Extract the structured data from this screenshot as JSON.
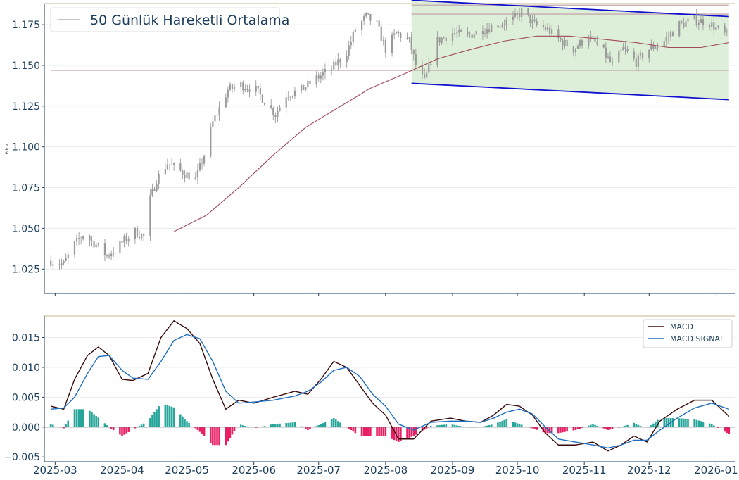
{
  "chart_data": [
    {
      "type": "candlestick",
      "ylabel": "Price",
      "ylim": [
        1.01,
        1.188
      ],
      "yticks": [
        1.025,
        1.05,
        1.075,
        1.1,
        1.125,
        1.15,
        1.175
      ],
      "ytick_labels": [
        "1.025",
        "1.050",
        "1.075",
        "1.100",
        "1.125",
        "1.150",
        "1.175"
      ],
      "x_start": "2025-02-24",
      "x_end": "2026-01-10",
      "xticks": [
        "2025-03-01",
        "2025-04-01",
        "2025-05-01",
        "2025-06-01",
        "2025-07-01",
        "2025-08-01",
        "2025-09-01",
        "2025-10-01",
        "2025-11-01",
        "2025-12-01",
        "2026-01-01"
      ],
      "xtick_labels": [
        "2025-03",
        "2025-04",
        "2025-05",
        "2025-06",
        "2025-07",
        "2025-08",
        "2025-09",
        "2025-10",
        "2025-11",
        "2025-12",
        "2026-01"
      ],
      "legend": {
        "label": "50 Günlük Hareketli Ortalama",
        "position": "top-left"
      },
      "price_path": [
        [
          "2025-02-27",
          1.03
        ],
        [
          "2025-03-05",
          1.028
        ],
        [
          "2025-03-10",
          1.04
        ],
        [
          "2025-03-14",
          1.046
        ],
        [
          "2025-03-20",
          1.04
        ],
        [
          "2025-03-25",
          1.033
        ],
        [
          "2025-03-31",
          1.04
        ],
        [
          "2025-04-07",
          1.048
        ],
        [
          "2025-04-11",
          1.045
        ],
        [
          "2025-04-14",
          1.068
        ],
        [
          "2025-04-17",
          1.08
        ],
        [
          "2025-04-22",
          1.09
        ],
        [
          "2025-04-28",
          1.085
        ],
        [
          "2025-05-05",
          1.08
        ],
        [
          "2025-05-09",
          1.095
        ],
        [
          "2025-05-13",
          1.115
        ],
        [
          "2025-05-20",
          1.135
        ],
        [
          "2025-05-26",
          1.138
        ],
        [
          "2025-06-02",
          1.135
        ],
        [
          "2025-06-06",
          1.128
        ],
        [
          "2025-06-11",
          1.12
        ],
        [
          "2025-06-16",
          1.132
        ],
        [
          "2025-06-23",
          1.135
        ],
        [
          "2025-06-30",
          1.142
        ],
        [
          "2025-07-07",
          1.148
        ],
        [
          "2025-07-14",
          1.158
        ],
        [
          "2025-07-18",
          1.172
        ],
        [
          "2025-07-23",
          1.18
        ],
        [
          "2025-07-28",
          1.175
        ],
        [
          "2025-08-01",
          1.16
        ],
        [
          "2025-08-06",
          1.17
        ],
        [
          "2025-08-12",
          1.165
        ],
        [
          "2025-08-15",
          1.15
        ],
        [
          "2025-08-19",
          1.14
        ],
        [
          "2025-08-25",
          1.165
        ],
        [
          "2025-09-01",
          1.17
        ],
        [
          "2025-09-08",
          1.168
        ],
        [
          "2025-09-15",
          1.172
        ],
        [
          "2025-09-22",
          1.175
        ],
        [
          "2025-09-29",
          1.178
        ],
        [
          "2025-10-03",
          1.183
        ],
        [
          "2025-10-09",
          1.175
        ],
        [
          "2025-10-15",
          1.172
        ],
        [
          "2025-10-21",
          1.165
        ],
        [
          "2025-10-27",
          1.16
        ],
        [
          "2025-11-03",
          1.168
        ],
        [
          "2025-11-10",
          1.158
        ],
        [
          "2025-11-14",
          1.15
        ],
        [
          "2025-11-19",
          1.16
        ],
        [
          "2025-11-25",
          1.152
        ],
        [
          "2025-12-01",
          1.16
        ],
        [
          "2025-12-08",
          1.165
        ],
        [
          "2025-12-15",
          1.175
        ],
        [
          "2025-12-22",
          1.178
        ],
        [
          "2025-12-29",
          1.176
        ],
        [
          "2026-01-06",
          1.168
        ]
      ],
      "moving_average": [
        [
          "2025-04-25",
          1.048
        ],
        [
          "2025-05-10",
          1.058
        ],
        [
          "2025-05-25",
          1.075
        ],
        [
          "2025-06-10",
          1.095
        ],
        [
          "2025-06-25",
          1.112
        ],
        [
          "2025-07-10",
          1.124
        ],
        [
          "2025-07-25",
          1.136
        ],
        [
          "2025-08-10",
          1.145
        ],
        [
          "2025-08-25",
          1.154
        ],
        [
          "2025-09-10",
          1.16
        ],
        [
          "2025-09-25",
          1.165
        ],
        [
          "2025-10-10",
          1.168
        ],
        [
          "2025-10-25",
          1.168
        ],
        [
          "2025-11-10",
          1.166
        ],
        [
          "2025-11-25",
          1.164
        ],
        [
          "2025-12-10",
          1.161
        ],
        [
          "2025-12-25",
          1.161
        ],
        [
          "2026-01-07",
          1.164
        ]
      ],
      "horizontal_levels": [
        {
          "y": 1.187,
          "from": "2025-08-13",
          "to": "2026-01-07"
        },
        {
          "y": 1.1815,
          "from": "2025-08-13",
          "to": "2026-01-07"
        },
        {
          "y": 1.147,
          "from": "2025-02-27",
          "to": "2026-01-07"
        }
      ],
      "channel": {
        "start": "2025-08-13",
        "end": "2026-01-07",
        "upper": [
          1.19,
          1.18
        ],
        "lower": [
          1.139,
          1.129
        ],
        "line_color": "#1010d0",
        "fill_color": "#d8ecd2"
      },
      "candle_color": "#9a9a9a",
      "ma_color": "#a04a5a",
      "level_color": "#c8b4b4"
    },
    {
      "type": "line+bar",
      "ylim": [
        -0.0058,
        0.0186
      ],
      "yticks": [
        -0.005,
        0.0,
        0.005,
        0.01,
        0.015
      ],
      "ytick_labels": [
        "−0.005",
        "0.000",
        "0.005",
        "0.010",
        "0.015"
      ],
      "legend_position": "top-right",
      "series": [
        {
          "name": "MACD",
          "color": "#3a0a0a",
          "points": [
            [
              "2025-02-27",
              0.0035
            ],
            [
              "2025-03-05",
              0.003
            ],
            [
              "2025-03-10",
              0.008
            ],
            [
              "2025-03-16",
              0.012
            ],
            [
              "2025-03-21",
              0.0134
            ],
            [
              "2025-03-26",
              0.012
            ],
            [
              "2025-04-01",
              0.008
            ],
            [
              "2025-04-06",
              0.0078
            ],
            [
              "2025-04-13",
              0.009
            ],
            [
              "2025-04-19",
              0.015
            ],
            [
              "2025-04-25",
              0.0178
            ],
            [
              "2025-05-01",
              0.0165
            ],
            [
              "2025-05-07",
              0.014
            ],
            [
              "2025-05-13",
              0.008
            ],
            [
              "2025-05-19",
              0.003
            ],
            [
              "2025-05-25",
              0.0045
            ],
            [
              "2025-06-01",
              0.004
            ],
            [
              "2025-06-10",
              0.005
            ],
            [
              "2025-06-20",
              0.006
            ],
            [
              "2025-06-26",
              0.0055
            ],
            [
              "2025-07-02",
              0.008
            ],
            [
              "2025-07-08",
              0.011
            ],
            [
              "2025-07-14",
              0.01
            ],
            [
              "2025-07-20",
              0.007
            ],
            [
              "2025-07-26",
              0.004
            ],
            [
              "2025-08-01",
              0.002
            ],
            [
              "2025-08-07",
              -0.002
            ],
            [
              "2025-08-14",
              -0.002
            ],
            [
              "2025-08-22",
              0.001
            ],
            [
              "2025-08-31",
              0.0015
            ],
            [
              "2025-09-07",
              0.001
            ],
            [
              "2025-09-14",
              0.0008
            ],
            [
              "2025-09-20",
              0.002
            ],
            [
              "2025-09-26",
              0.0038
            ],
            [
              "2025-10-02",
              0.0035
            ],
            [
              "2025-10-08",
              0.002
            ],
            [
              "2025-10-14",
              -0.001
            ],
            [
              "2025-10-20",
              -0.003
            ],
            [
              "2025-10-28",
              -0.003
            ],
            [
              "2025-11-05",
              -0.0025
            ],
            [
              "2025-11-12",
              -0.004
            ],
            [
              "2025-11-18",
              -0.003
            ],
            [
              "2025-11-24",
              -0.0015
            ],
            [
              "2025-11-30",
              -0.0025
            ],
            [
              "2025-12-06",
              0.001
            ],
            [
              "2025-12-14",
              0.003
            ],
            [
              "2025-12-22",
              0.0045
            ],
            [
              "2025-12-30",
              0.0045
            ],
            [
              "2026-01-07",
              0.0018
            ]
          ]
        },
        {
          "name": "MACD SIGNAL",
          "color": "#1f6fc0",
          "points": [
            [
              "2025-02-27",
              0.003
            ],
            [
              "2025-03-05",
              0.0032
            ],
            [
              "2025-03-10",
              0.005
            ],
            [
              "2025-03-16",
              0.009
            ],
            [
              "2025-03-21",
              0.0118
            ],
            [
              "2025-03-26",
              0.012
            ],
            [
              "2025-04-01",
              0.0095
            ],
            [
              "2025-04-06",
              0.0082
            ],
            [
              "2025-04-13",
              0.008
            ],
            [
              "2025-04-19",
              0.011
            ],
            [
              "2025-04-25",
              0.0145
            ],
            [
              "2025-05-01",
              0.0155
            ],
            [
              "2025-05-07",
              0.0148
            ],
            [
              "2025-05-13",
              0.011
            ],
            [
              "2025-05-19",
              0.006
            ],
            [
              "2025-05-25",
              0.004
            ],
            [
              "2025-06-01",
              0.0042
            ],
            [
              "2025-06-10",
              0.0045
            ],
            [
              "2025-06-20",
              0.0052
            ],
            [
              "2025-06-26",
              0.006
            ],
            [
              "2025-07-02",
              0.0075
            ],
            [
              "2025-07-08",
              0.0095
            ],
            [
              "2025-07-14",
              0.01
            ],
            [
              "2025-07-20",
              0.0085
            ],
            [
              "2025-07-26",
              0.0055
            ],
            [
              "2025-08-01",
              0.0035
            ],
            [
              "2025-08-07",
              0.0005
            ],
            [
              "2025-08-14",
              -0.0005
            ],
            [
              "2025-08-22",
              0.0008
            ],
            [
              "2025-08-31",
              0.001
            ],
            [
              "2025-09-07",
              0.001
            ],
            [
              "2025-09-14",
              0.0008
            ],
            [
              "2025-09-20",
              0.0015
            ],
            [
              "2025-09-26",
              0.0025
            ],
            [
              "2025-10-02",
              0.003
            ],
            [
              "2025-10-08",
              0.0022
            ],
            [
              "2025-10-14",
              0.0
            ],
            [
              "2025-10-20",
              -0.002
            ],
            [
              "2025-10-28",
              -0.0025
            ],
            [
              "2025-11-05",
              -0.003
            ],
            [
              "2025-11-12",
              -0.0035
            ],
            [
              "2025-11-18",
              -0.003
            ],
            [
              "2025-11-24",
              -0.0022
            ],
            [
              "2025-11-30",
              -0.0022
            ],
            [
              "2025-12-06",
              -0.0005
            ],
            [
              "2025-12-14",
              0.0015
            ],
            [
              "2025-12-22",
              0.0032
            ],
            [
              "2025-12-30",
              0.004
            ],
            [
              "2026-01-07",
              0.003
            ]
          ]
        }
      ],
      "histogram_colors": {
        "positive": "#26a69a",
        "negative": "#e91e63"
      }
    }
  ]
}
